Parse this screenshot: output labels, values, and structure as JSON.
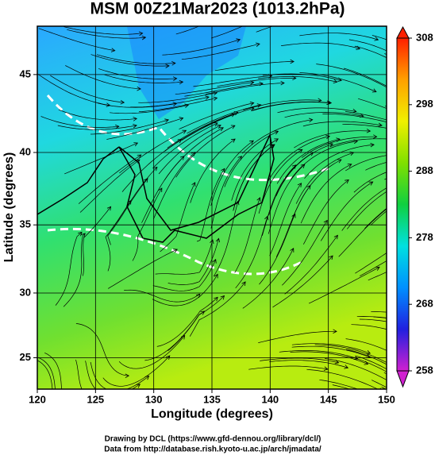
{
  "chart_data": {
    "type": "map",
    "title": "MSM 00Z21Mar2023 (1013.2hPa)",
    "x_label": "Longitude (degrees)",
    "y_label": "Latitude  (degrees)",
    "xlim": [
      120,
      150
    ],
    "ylim": [
      22.5,
      47.9
    ],
    "xticks": [
      120,
      125,
      130,
      135,
      140,
      145,
      150
    ],
    "yticks": [
      25,
      30,
      35,
      40,
      45
    ],
    "projection": "mercator",
    "grid": true,
    "colorbar": {
      "lim": [
        258,
        308
      ],
      "ticks": [
        258,
        268,
        278,
        288,
        298,
        308
      ],
      "colors": [
        "#d020d0",
        "#2020e0",
        "#0090ff",
        "#00e0e0",
        "#10d040",
        "#80e000",
        "#f0f000",
        "#ffa000",
        "#ff2000"
      ]
    },
    "credits": [
      "Drawing by DCL (https://www.gfd-dennou.org/library/dcl/)",
      "Data from http://database.rish.kyoto-u.ac.jp/arch/jmadata/"
    ]
  }
}
